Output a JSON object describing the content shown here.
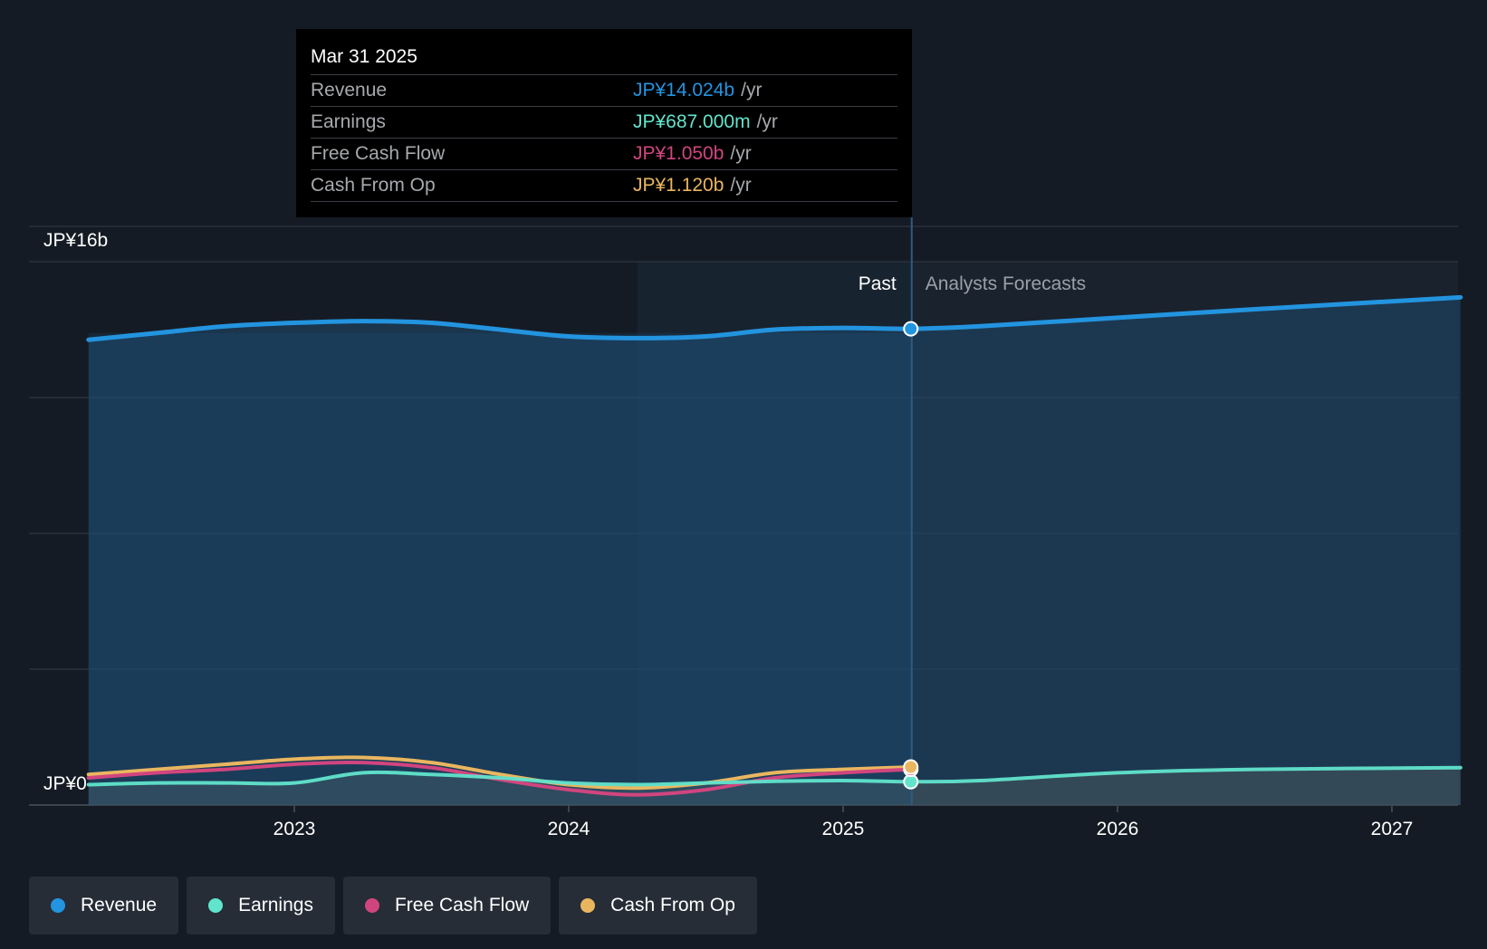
{
  "tooltip": {
    "date": "Mar 31 2025",
    "rows": [
      {
        "label": "Revenue",
        "value": "JP¥14.024b",
        "unit": "/yr",
        "color": "#2394df"
      },
      {
        "label": "Earnings",
        "value": "JP¥687.000m",
        "unit": "/yr",
        "color": "#61e4cc"
      },
      {
        "label": "Free Cash Flow",
        "value": "JP¥1.050b",
        "unit": "/yr",
        "color": "#d1457f"
      },
      {
        "label": "Cash From Op",
        "value": "JP¥1.120b",
        "unit": "/yr",
        "color": "#e9b65f"
      }
    ]
  },
  "legend": [
    {
      "label": "Revenue",
      "color": "#2394df"
    },
    {
      "label": "Earnings",
      "color": "#61e4cc"
    },
    {
      "label": "Free Cash Flow",
      "color": "#d1457f"
    },
    {
      "label": "Cash From Op",
      "color": "#e9b65f"
    }
  ],
  "chart_data": {
    "type": "area",
    "x_unit": "year",
    "ylim": [
      0,
      16
    ],
    "y_unit": "JP¥b",
    "y_tick_labels": [
      "JP¥16b",
      "JP¥0"
    ],
    "x_ticks": [
      "2023",
      "2024",
      "2025",
      "2026",
      "2027"
    ],
    "divider_x": 2025.25,
    "past_label": "Past",
    "forecast_label": "Analysts Forecasts",
    "grid": true,
    "series": [
      {
        "name": "Revenue",
        "color": "#2394df",
        "fill": true,
        "points": [
          [
            2022.25,
            13.7
          ],
          [
            2022.5,
            13.9
          ],
          [
            2022.75,
            14.1
          ],
          [
            2023.0,
            14.2
          ],
          [
            2023.25,
            14.25
          ],
          [
            2023.5,
            14.2
          ],
          [
            2023.75,
            14.0
          ],
          [
            2024.0,
            13.8
          ],
          [
            2024.25,
            13.75
          ],
          [
            2024.5,
            13.8
          ],
          [
            2024.75,
            14.0
          ],
          [
            2025.0,
            14.05
          ],
          [
            2025.25,
            14.024
          ],
          [
            2025.5,
            14.1
          ],
          [
            2026.0,
            14.35
          ],
          [
            2026.5,
            14.6
          ],
          [
            2027.25,
            14.95
          ]
        ]
      },
      {
        "name": "Earnings",
        "color": "#61e4cc",
        "fill": true,
        "points": [
          [
            2022.25,
            0.6
          ],
          [
            2022.5,
            0.65
          ],
          [
            2022.75,
            0.65
          ],
          [
            2023.0,
            0.65
          ],
          [
            2023.25,
            0.95
          ],
          [
            2023.5,
            0.9
          ],
          [
            2023.75,
            0.8
          ],
          [
            2024.0,
            0.65
          ],
          [
            2024.25,
            0.6
          ],
          [
            2024.5,
            0.65
          ],
          [
            2024.75,
            0.7
          ],
          [
            2025.0,
            0.72
          ],
          [
            2025.25,
            0.687
          ],
          [
            2025.5,
            0.72
          ],
          [
            2026.0,
            0.95
          ],
          [
            2026.5,
            1.05
          ],
          [
            2027.25,
            1.1
          ]
        ]
      },
      {
        "name": "Free Cash Flow",
        "color": "#d1457f",
        "fill": false,
        "points": [
          [
            2022.25,
            0.8
          ],
          [
            2022.5,
            0.95
          ],
          [
            2022.75,
            1.05
          ],
          [
            2023.0,
            1.2
          ],
          [
            2023.25,
            1.25
          ],
          [
            2023.5,
            1.1
          ],
          [
            2023.75,
            0.75
          ],
          [
            2024.0,
            0.45
          ],
          [
            2024.25,
            0.3
          ],
          [
            2024.5,
            0.45
          ],
          [
            2024.75,
            0.8
          ],
          [
            2025.0,
            0.95
          ],
          [
            2025.25,
            1.05
          ]
        ]
      },
      {
        "name": "Cash From Op",
        "color": "#e9b65f",
        "fill": false,
        "points": [
          [
            2022.25,
            0.9
          ],
          [
            2022.5,
            1.05
          ],
          [
            2022.75,
            1.2
          ],
          [
            2023.0,
            1.35
          ],
          [
            2023.25,
            1.4
          ],
          [
            2023.5,
            1.25
          ],
          [
            2023.75,
            0.9
          ],
          [
            2024.0,
            0.6
          ],
          [
            2024.25,
            0.5
          ],
          [
            2024.5,
            0.65
          ],
          [
            2024.75,
            0.95
          ],
          [
            2025.0,
            1.05
          ],
          [
            2025.25,
            1.12
          ]
        ]
      }
    ]
  }
}
